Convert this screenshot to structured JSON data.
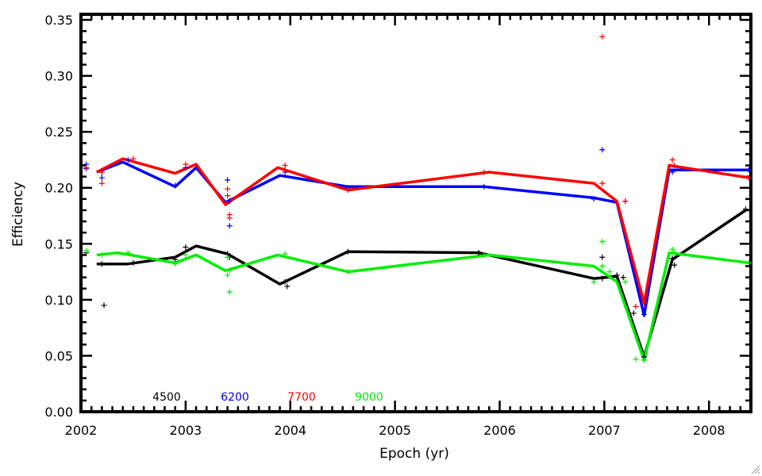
{
  "chart_data": {
    "type": "line",
    "title": "",
    "xlabel": "Epoch (yr)",
    "ylabel": "Efficiency",
    "xlim": [
      2002.0,
      2008.4
    ],
    "ylim": [
      0.0,
      0.355
    ],
    "xticks": [
      2002,
      2003,
      2004,
      2005,
      2006,
      2007,
      2008
    ],
    "xtick_labels": [
      "2002",
      "2003",
      "2004",
      "2005",
      "2006",
      "2007",
      "2008"
    ],
    "yticks": [
      0.0,
      0.05,
      0.1,
      0.15,
      0.2,
      0.25,
      0.3,
      0.35
    ],
    "ytick_labels": [
      "0.00",
      "0.05",
      "0.10",
      "0.15",
      "0.20",
      "0.25",
      "0.30",
      "0.35"
    ],
    "grid": false,
    "legend_position": "bottom-left",
    "series": [
      {
        "name": "4500",
        "color": "#000000",
        "line": [
          [
            2002.15,
            0.132
          ],
          [
            2002.45,
            0.132
          ],
          [
            2002.9,
            0.138
          ],
          [
            2003.1,
            0.148
          ],
          [
            2003.4,
            0.141
          ],
          [
            2003.9,
            0.114
          ],
          [
            2004.55,
            0.143
          ],
          [
            2005.8,
            0.142
          ],
          [
            2006.9,
            0.119
          ],
          [
            2007.12,
            0.121
          ],
          [
            2007.38,
            0.049
          ],
          [
            2007.65,
            0.136
          ],
          [
            2008.35,
            0.18
          ]
        ],
        "points": [
          [
            2002.05,
            0.142
          ],
          [
            2002.2,
            0.132
          ],
          [
            2002.22,
            0.095
          ],
          [
            2002.5,
            0.133
          ],
          [
            2002.9,
            0.136
          ],
          [
            2003.0,
            0.147
          ],
          [
            2003.4,
            0.141
          ],
          [
            2003.42,
            0.138
          ],
          [
            2003.95,
            0.116
          ],
          [
            2003.97,
            0.112
          ],
          [
            2004.55,
            0.143
          ],
          [
            2005.8,
            0.142
          ],
          [
            2006.98,
            0.138
          ],
          [
            2006.98,
            0.119
          ],
          [
            2007.12,
            0.122
          ],
          [
            2007.18,
            0.12
          ],
          [
            2007.28,
            0.088
          ],
          [
            2007.38,
            0.049
          ],
          [
            2007.65,
            0.137
          ],
          [
            2007.67,
            0.131
          ],
          [
            2008.35,
            0.181
          ]
        ]
      },
      {
        "name": "6200",
        "color": "#0000ff",
        "line": [
          [
            2002.15,
            0.214
          ],
          [
            2002.4,
            0.223
          ],
          [
            2002.9,
            0.201
          ],
          [
            2003.1,
            0.218
          ],
          [
            2003.38,
            0.187
          ],
          [
            2003.9,
            0.211
          ],
          [
            2004.55,
            0.201
          ],
          [
            2005.85,
            0.201
          ],
          [
            2006.9,
            0.191
          ],
          [
            2007.12,
            0.187
          ],
          [
            2007.38,
            0.086
          ],
          [
            2007.62,
            0.216
          ],
          [
            2008.38,
            0.216
          ]
        ],
        "points": [
          [
            2002.05,
            0.221
          ],
          [
            2002.05,
            0.217
          ],
          [
            2002.2,
            0.214
          ],
          [
            2002.2,
            0.209
          ],
          [
            2002.45,
            0.225
          ],
          [
            2002.9,
            0.202
          ],
          [
            2003.0,
            0.218
          ],
          [
            2003.4,
            0.207
          ],
          [
            2003.42,
            0.188
          ],
          [
            2003.42,
            0.166
          ],
          [
            2003.95,
            0.214
          ],
          [
            2004.55,
            0.2
          ],
          [
            2005.85,
            0.201
          ],
          [
            2006.98,
            0.234
          ],
          [
            2006.9,
            0.19
          ],
          [
            2007.2,
            0.188
          ],
          [
            2007.38,
            0.087
          ],
          [
            2007.65,
            0.214
          ],
          [
            2008.38,
            0.216
          ]
        ]
      },
      {
        "name": "7700",
        "color": "#ff0000",
        "line": [
          [
            2002.15,
            0.214
          ],
          [
            2002.4,
            0.226
          ],
          [
            2002.9,
            0.213
          ],
          [
            2003.1,
            0.221
          ],
          [
            2003.38,
            0.185
          ],
          [
            2003.88,
            0.218
          ],
          [
            2004.55,
            0.198
          ],
          [
            2005.9,
            0.214
          ],
          [
            2006.9,
            0.204
          ],
          [
            2007.12,
            0.188
          ],
          [
            2007.38,
            0.097
          ],
          [
            2007.62,
            0.22
          ],
          [
            2008.38,
            0.209
          ]
        ],
        "points": [
          [
            2002.05,
            0.218
          ],
          [
            2002.2,
            0.204
          ],
          [
            2002.2,
            0.214
          ],
          [
            2002.5,
            0.226
          ],
          [
            2003.0,
            0.221
          ],
          [
            2003.4,
            0.199
          ],
          [
            2003.4,
            0.193
          ],
          [
            2003.42,
            0.176
          ],
          [
            2003.42,
            0.173
          ],
          [
            2003.95,
            0.22
          ],
          [
            2003.95,
            0.216
          ],
          [
            2004.55,
            0.198
          ],
          [
            2005.85,
            0.214
          ],
          [
            2006.98,
            0.335
          ],
          [
            2006.98,
            0.204
          ],
          [
            2007.2,
            0.188
          ],
          [
            2007.3,
            0.094
          ],
          [
            2007.38,
            0.097
          ],
          [
            2007.65,
            0.225
          ],
          [
            2007.67,
            0.22
          ],
          [
            2008.38,
            0.209
          ]
        ]
      },
      {
        "name": "9000",
        "color": "#00ee00",
        "line": [
          [
            2002.15,
            0.14
          ],
          [
            2002.35,
            0.142
          ],
          [
            2002.9,
            0.133
          ],
          [
            2003.1,
            0.14
          ],
          [
            2003.38,
            0.126
          ],
          [
            2003.88,
            0.14
          ],
          [
            2004.55,
            0.125
          ],
          [
            2005.9,
            0.14
          ],
          [
            2006.9,
            0.13
          ],
          [
            2007.12,
            0.116
          ],
          [
            2007.38,
            0.046
          ],
          [
            2007.62,
            0.142
          ],
          [
            2008.38,
            0.133
          ]
        ],
        "points": [
          [
            2002.05,
            0.144
          ],
          [
            2002.2,
            0.14
          ],
          [
            2002.45,
            0.142
          ],
          [
            2002.9,
            0.132
          ],
          [
            2003.0,
            0.14
          ],
          [
            2003.4,
            0.138
          ],
          [
            2003.42,
            0.126
          ],
          [
            2003.4,
            0.122
          ],
          [
            2003.42,
            0.107
          ],
          [
            2003.95,
            0.141
          ],
          [
            2004.55,
            0.125
          ],
          [
            2005.85,
            0.14
          ],
          [
            2006.98,
            0.152
          ],
          [
            2006.98,
            0.13
          ],
          [
            2006.9,
            0.116
          ],
          [
            2007.05,
            0.125
          ],
          [
            2007.2,
            0.116
          ],
          [
            2007.3,
            0.047
          ],
          [
            2007.38,
            0.046
          ],
          [
            2007.65,
            0.145
          ],
          [
            2007.67,
            0.142
          ],
          [
            2008.38,
            0.133
          ]
        ]
      }
    ]
  }
}
